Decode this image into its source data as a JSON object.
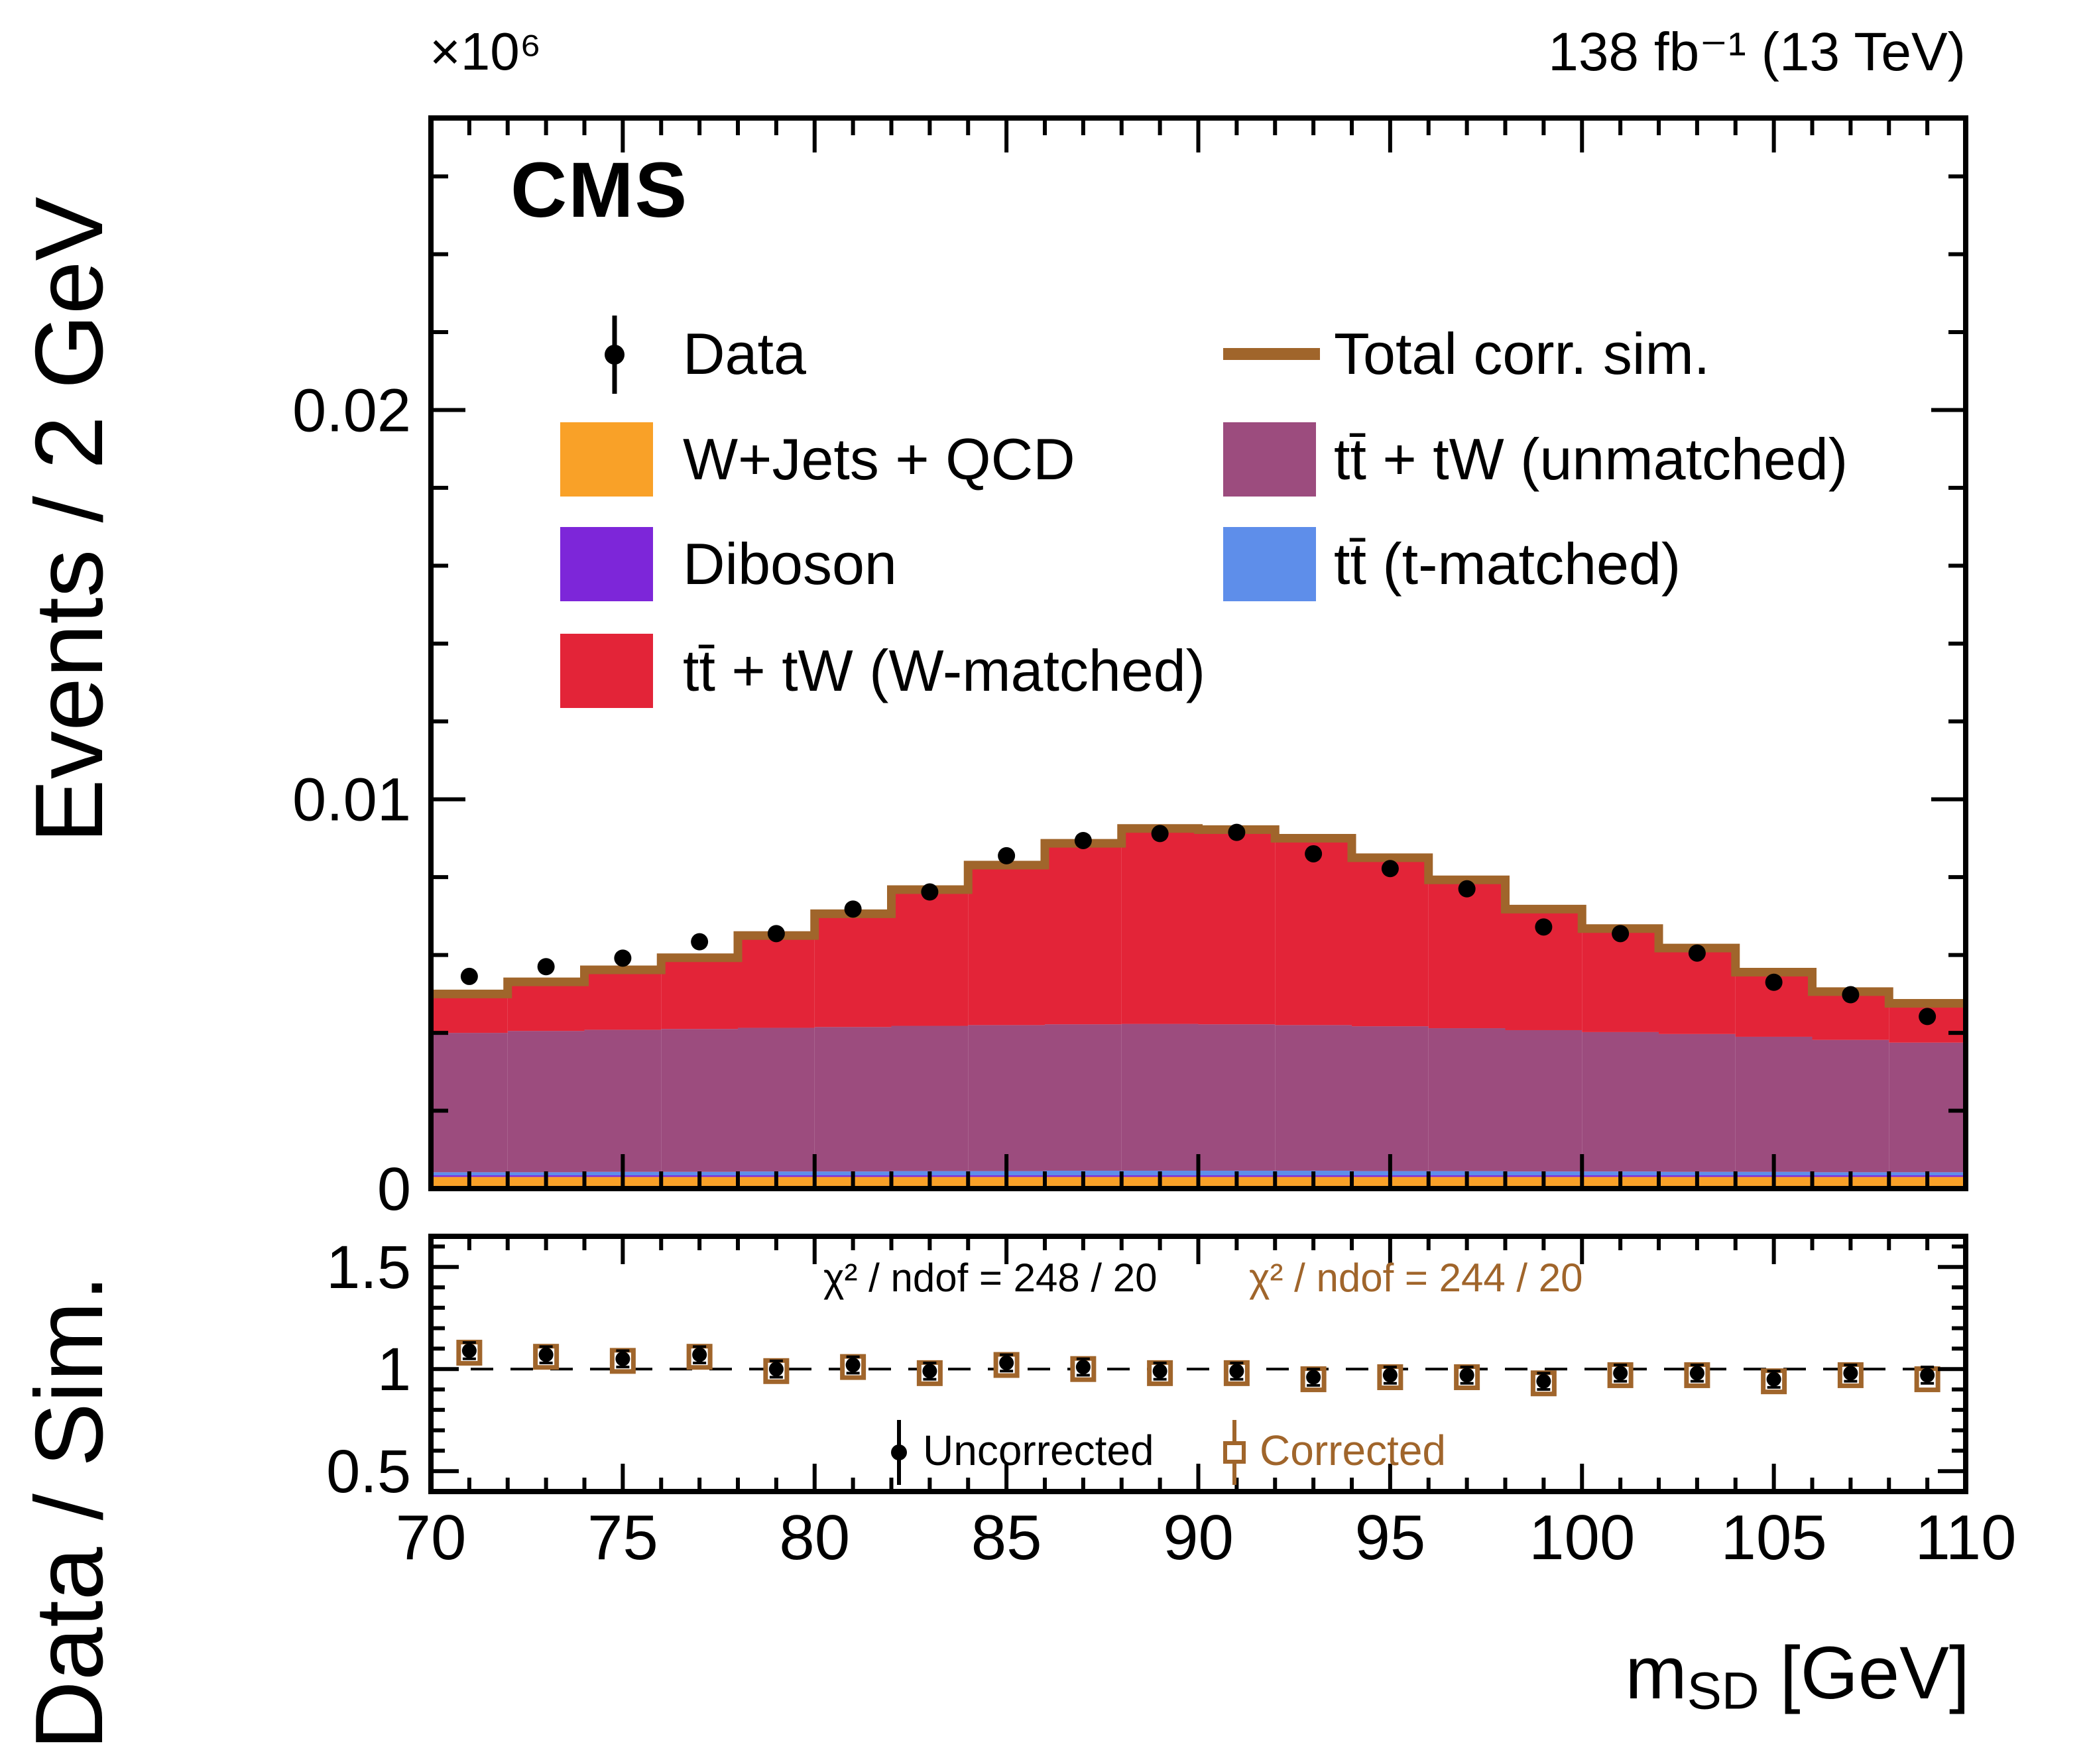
{
  "header": {
    "experiment": "CMS",
    "lumi": "138 fb⁻¹ (13 TeV)",
    "y_exponent": "×10⁶"
  },
  "axes": {
    "y_main_title": "Events / 2 GeV",
    "y_ratio_title": "Data / Sim.",
    "x_title_base": "m",
    "x_title_sub": "SD",
    "x_title_unit": " [GeV]"
  },
  "chart_data": {
    "type": "stacked-histogram+ratio",
    "title": "",
    "x_edges": [
      70,
      72,
      74,
      76,
      78,
      80,
      82,
      84,
      86,
      88,
      90,
      92,
      94,
      96,
      98,
      100,
      102,
      104,
      106,
      108,
      110
    ],
    "x_centers": [
      71,
      73,
      75,
      77,
      79,
      81,
      83,
      85,
      87,
      89,
      91,
      93,
      95,
      97,
      99,
      101,
      103,
      105,
      107,
      109
    ],
    "bin_width": 2,
    "y_scale_exponent": 6,
    "xticks": [
      70,
      75,
      80,
      85,
      90,
      95,
      100,
      105,
      110
    ],
    "xtick_labels": [
      "70",
      "75",
      "80",
      "85",
      "90",
      "95",
      "100",
      "105",
      "110"
    ],
    "main": {
      "ylim": [
        0,
        0.0275
      ],
      "yticks": [
        0,
        0.01,
        0.02
      ],
      "ytick_labels": [
        "0",
        "0.01",
        "0.02"
      ],
      "stack_order": [
        "wjets_qcd",
        "diboson",
        "tt_t_matched",
        "tt_tw_unmatched",
        "tt_tw_w_matched"
      ],
      "stacks": {
        "wjets_qcd": {
          "label": "W+Jets + QCD",
          "color": "#F9A128",
          "values": [
            0.0003,
            0.0003,
            0.0003,
            0.0003,
            0.0003,
            0.0003,
            0.0003,
            0.0003,
            0.0003,
            0.0003,
            0.0003,
            0.0003,
            0.0003,
            0.0003,
            0.0003,
            0.0003,
            0.0003,
            0.0003,
            0.0003,
            0.0003
          ]
        },
        "diboson": {
          "label": "Diboson",
          "color": "#7D26D9",
          "values": [
            4e-05,
            4e-05,
            4e-05,
            4e-05,
            4e-05,
            4e-05,
            4e-05,
            4e-05,
            4e-05,
            4e-05,
            4e-05,
            4e-05,
            4e-05,
            4e-05,
            4e-05,
            4e-05,
            4e-05,
            4e-05,
            4e-05,
            4e-05
          ]
        },
        "tt_t_matched": {
          "label": "tt̄ (t-matched)",
          "color": "#5E8EEA",
          "values": [
            8e-05,
            8e-05,
            9e-05,
            9e-05,
            0.0001,
            0.0001,
            0.00011,
            0.00011,
            0.00012,
            0.00012,
            0.00012,
            0.00012,
            0.00011,
            0.00011,
            0.0001,
            0.0001,
            9e-05,
            9e-05,
            8e-05,
            8e-05
          ]
        },
        "tt_tw_unmatched": {
          "label": "tt̄ + tW (unmatched)",
          "color": "#9C4C7E",
          "values": [
            0.00358,
            0.00363,
            0.00365,
            0.00367,
            0.00369,
            0.00371,
            0.00373,
            0.00375,
            0.00376,
            0.00377,
            0.00376,
            0.00374,
            0.00372,
            0.00367,
            0.00363,
            0.00358,
            0.00354,
            0.00347,
            0.0034,
            0.00333
          ]
        },
        "tt_tw_w_matched": {
          "label": "tt̄ + tW (W-matched)",
          "color": "#E32438",
          "values": [
            0.001,
            0.00126,
            0.00154,
            0.00183,
            0.00237,
            0.00291,
            0.0035,
            0.00411,
            0.00465,
            0.00502,
            0.005,
            0.0048,
            0.00433,
            0.00381,
            0.00311,
            0.00266,
            0.00221,
            0.00166,
            0.00124,
            0.00101
          ]
        }
      },
      "total_corr_sim": {
        "label": "Total corr. sim.",
        "color": "#A0652B",
        "values": [
          0.005,
          0.00531,
          0.00562,
          0.00593,
          0.0065,
          0.00706,
          0.00768,
          0.00831,
          0.00887,
          0.00925,
          0.00922,
          0.009,
          0.0085,
          0.00793,
          0.00718,
          0.00668,
          0.00618,
          0.00556,
          0.00506,
          0.00476
        ]
      },
      "data": {
        "label": "Data",
        "color": "#000000",
        "values": [
          0.00545,
          0.0057,
          0.00592,
          0.00634,
          0.00655,
          0.00718,
          0.00762,
          0.00855,
          0.00894,
          0.00912,
          0.00915,
          0.0086,
          0.00822,
          0.0077,
          0.00672,
          0.00655,
          0.00605,
          0.0053,
          0.00498,
          0.00442
        ],
        "errors": [
          0.0001,
          0.0001,
          0.0001,
          0.0001,
          0.0001,
          0.0001,
          0.0001,
          0.0001,
          0.0001,
          0.0001,
          0.0001,
          0.0001,
          0.0001,
          0.0001,
          0.0001,
          0.0001,
          0.0001,
          0.0001,
          0.0001,
          0.0001
        ]
      }
    },
    "ratio": {
      "ylim": [
        0.4,
        1.65
      ],
      "yticks": [
        0.5,
        1.0,
        1.5
      ],
      "ytick_labels": [
        "0.5",
        "1",
        "1.5"
      ],
      "reference_line": 1.0,
      "uncorrected": {
        "label": "Uncorrected",
        "color": "#000000",
        "values": [
          1.09,
          1.07,
          1.05,
          1.07,
          1.0,
          1.02,
          0.99,
          1.03,
          1.01,
          0.99,
          0.99,
          0.96,
          0.97,
          0.97,
          0.94,
          0.98,
          0.98,
          0.95,
          0.98,
          0.97
        ],
        "errors": [
          0.04,
          0.04,
          0.04,
          0.04,
          0.04,
          0.04,
          0.04,
          0.04,
          0.04,
          0.04,
          0.04,
          0.04,
          0.04,
          0.04,
          0.04,
          0.04,
          0.04,
          0.04,
          0.04,
          0.04
        ]
      },
      "corrected": {
        "label": "Corrected",
        "color": "#A0652B",
        "values": [
          1.08,
          1.06,
          1.04,
          1.06,
          0.99,
          1.01,
          0.98,
          1.02,
          1.0,
          0.98,
          0.98,
          0.95,
          0.96,
          0.96,
          0.93,
          0.97,
          0.97,
          0.94,
          0.97,
          0.95
        ],
        "errors": [
          0.04,
          0.04,
          0.04,
          0.04,
          0.04,
          0.04,
          0.04,
          0.04,
          0.04,
          0.04,
          0.04,
          0.04,
          0.04,
          0.04,
          0.04,
          0.04,
          0.04,
          0.04,
          0.04,
          0.04
        ]
      },
      "annotations": {
        "chi2_uncorrected": "χ² / ndof = 248 / 20",
        "chi2_corrected": "χ² / ndof = 244 / 20"
      }
    }
  }
}
